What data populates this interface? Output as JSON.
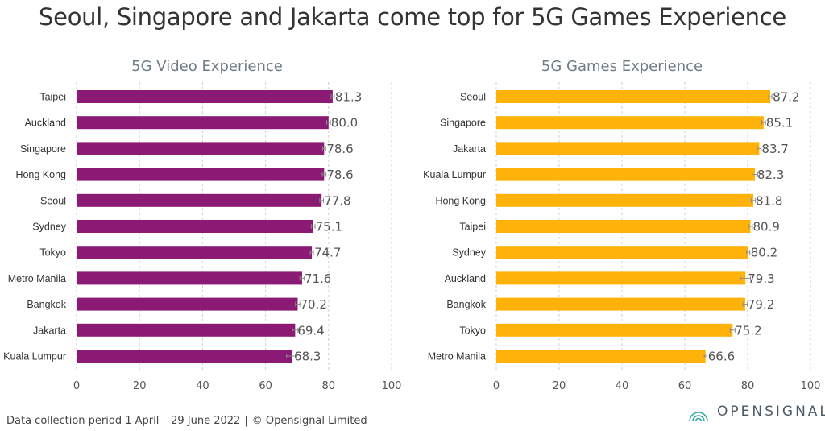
{
  "title": "Seoul, Singapore and Jakarta come top for 5G Games Experience",
  "footer": {
    "collection": "Data collection period 1 April – 29 June 2022",
    "separator": "|",
    "copyright": "© Opensignal Limited"
  },
  "brand": {
    "name": "OPENSIGNAL",
    "icon": "opensignal-logo-icon"
  },
  "colors": {
    "video": "#8a1a73",
    "games": "#ffb20a",
    "grid": "#cfcfcf",
    "errorbar": "#8c8c8c"
  },
  "chart_data": [
    {
      "type": "bar",
      "orientation": "horizontal",
      "title": "5G Video Experience",
      "categories": [
        "Taipei",
        "Auckland",
        "Singapore",
        "Hong Kong",
        "Seoul",
        "Sydney",
        "Tokyo",
        "Metro Manila",
        "Bangkok",
        "Jakarta",
        "Kuala Lumpur"
      ],
      "values": [
        81.3,
        80.0,
        78.6,
        78.6,
        77.8,
        75.1,
        74.7,
        71.6,
        70.2,
        69.4,
        68.3
      ],
      "labels": [
        "81.3",
        "80.0",
        "78.6",
        "78.6",
        "77.8",
        "75.1",
        "74.7",
        "71.6",
        "70.2",
        "69.4",
        "68.3"
      ],
      "error": [
        0.5,
        0.6,
        0.5,
        0.6,
        0.6,
        0.6,
        0.5,
        0.7,
        0.7,
        0.9,
        1.6
      ],
      "xlim": [
        0,
        100
      ],
      "xticks": [
        0,
        20,
        40,
        60,
        80,
        100
      ],
      "color": "#8a1a73",
      "grid": true
    },
    {
      "type": "bar",
      "orientation": "horizontal",
      "title": "5G Games Experience",
      "categories": [
        "Seoul",
        "Singapore",
        "Jakarta",
        "Kuala Lumpur",
        "Hong Kong",
        "Taipei",
        "Sydney",
        "Auckland",
        "Bangkok",
        "Tokyo",
        "Metro Manila"
      ],
      "values": [
        87.2,
        85.1,
        83.7,
        82.3,
        81.8,
        80.9,
        80.2,
        79.3,
        79.2,
        75.2,
        66.6
      ],
      "labels": [
        "87.2",
        "85.1",
        "83.7",
        "82.3",
        "81.8",
        "80.9",
        "80.2",
        "79.3",
        "79.2",
        "75.2",
        "66.6"
      ],
      "error": [
        0.5,
        0.6,
        0.6,
        0.9,
        0.7,
        0.6,
        0.5,
        1.6,
        0.7,
        0.8,
        0.4
      ],
      "xlim": [
        0,
        100
      ],
      "xticks": [
        0,
        20,
        40,
        60,
        80,
        100
      ],
      "color": "#ffb20a",
      "grid": true
    }
  ]
}
